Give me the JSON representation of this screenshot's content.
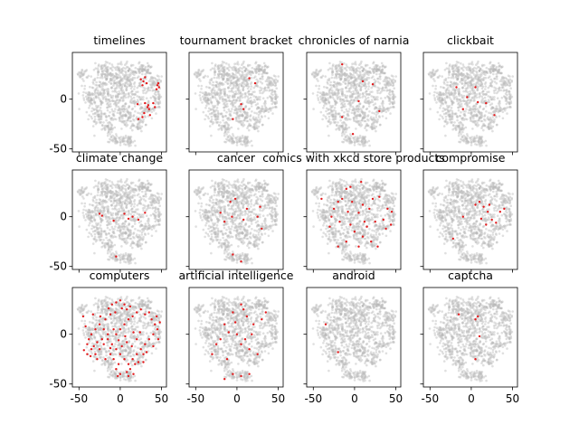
{
  "figure": {
    "background_color": "#ffffff",
    "background_point_color": "#b8b8b8",
    "highlight_color": "#e31a1c"
  },
  "chart_data": {
    "type": "scatter",
    "description_note": "12 small-multiple t-SNE style scatter panels sharing axes; grey background cloud with red highlighted points per topic",
    "xlim": [
      -58,
      56
    ],
    "ylim": [
      -53,
      47
    ],
    "x_ticks": [
      -50,
      0,
      50
    ],
    "y_ticks": [
      -50,
      0
    ],
    "grid": false,
    "rows": 3,
    "cols": 4,
    "panels": [
      {
        "title": "timelines",
        "highlight": [
          [
            25,
            20
          ],
          [
            28,
            18
          ],
          [
            30,
            22
          ],
          [
            32,
            16
          ],
          [
            27,
            14
          ],
          [
            45,
            14
          ],
          [
            47,
            12
          ],
          [
            46,
            16
          ],
          [
            44,
            10
          ],
          [
            30,
            -4
          ],
          [
            33,
            -8
          ],
          [
            35,
            -10
          ],
          [
            29,
            -14
          ],
          [
            36,
            -16
          ],
          [
            34,
            -6
          ],
          [
            27,
            -18
          ],
          [
            22,
            -20
          ],
          [
            40,
            -4
          ],
          [
            42,
            -8
          ],
          [
            21,
            -5
          ]
        ]
      },
      {
        "title": "tournament bracket",
        "highlight": [
          [
            15,
            21
          ],
          [
            22,
            16
          ],
          [
            5,
            -5
          ],
          [
            -5,
            -20
          ],
          [
            8,
            -10
          ]
        ]
      },
      {
        "title": "chronicles of narnia",
        "highlight": [
          [
            -15,
            35
          ],
          [
            22,
            15
          ],
          [
            5,
            -2
          ],
          [
            -15,
            -18
          ],
          [
            10,
            18
          ],
          [
            30,
            -12
          ],
          [
            -2,
            -35
          ]
        ]
      },
      {
        "title": "clickbait",
        "highlight": [
          [
            -18,
            12
          ],
          [
            -5,
            2
          ],
          [
            18,
            -4
          ],
          [
            -10,
            -10
          ],
          [
            5,
            12
          ],
          [
            28,
            -16
          ],
          [
            8,
            -3
          ]
        ]
      },
      {
        "title": "climate change",
        "highlight": [
          [
            -25,
            3
          ],
          [
            -22,
            1
          ],
          [
            10,
            -2
          ],
          [
            15,
            0
          ],
          [
            -8,
            -4
          ],
          [
            22,
            -3
          ],
          [
            -5,
            -40
          ],
          [
            30,
            4
          ],
          [
            5,
            3
          ]
        ]
      },
      {
        "title": "cancer",
        "highlight": [
          [
            -8,
            15
          ],
          [
            -2,
            18
          ],
          [
            -15,
            -5
          ],
          [
            8,
            -3
          ],
          [
            -20,
            4
          ],
          [
            5,
            -45
          ],
          [
            25,
            0
          ],
          [
            12,
            8
          ],
          [
            -6,
            0
          ],
          [
            28,
            10
          ],
          [
            30,
            -12
          ],
          [
            -5,
            -38
          ]
        ]
      },
      {
        "title": "comics with xkcd store products",
        "highlight": [
          [
            -10,
            28
          ],
          [
            -5,
            30
          ],
          [
            8,
            35
          ],
          [
            -15,
            18
          ],
          [
            -20,
            15
          ],
          [
            -25,
            8
          ],
          [
            -8,
            5
          ],
          [
            5,
            4
          ],
          [
            10,
            12
          ],
          [
            22,
            18
          ],
          [
            30,
            20
          ],
          [
            40,
            8
          ],
          [
            45,
            5
          ],
          [
            35,
            -3
          ],
          [
            25,
            -5
          ],
          [
            15,
            -10
          ],
          [
            -5,
            -8
          ],
          [
            -18,
            -5
          ],
          [
            -28,
            0
          ],
          [
            -30,
            -10
          ],
          [
            0,
            -15
          ],
          [
            10,
            -20
          ],
          [
            20,
            -25
          ],
          [
            -10,
            -25
          ],
          [
            5,
            -30
          ],
          [
            -40,
            18
          ],
          [
            38,
            -12
          ],
          [
            18,
            8
          ],
          [
            -3,
            15
          ],
          [
            12,
            -5
          ],
          [
            28,
            -30
          ],
          [
            -20,
            -30
          ],
          [
            44,
            -8
          ]
        ]
      },
      {
        "title": "compromise",
        "highlight": [
          [
            5,
            12
          ],
          [
            10,
            15
          ],
          [
            15,
            10
          ],
          [
            20,
            5
          ],
          [
            25,
            -3
          ],
          [
            30,
            -6
          ],
          [
            18,
            -8
          ],
          [
            12,
            -2
          ],
          [
            35,
            5
          ],
          [
            40,
            8
          ],
          [
            -10,
            0
          ],
          [
            -22,
            -22
          ],
          [
            22,
            12
          ]
        ]
      },
      {
        "title": "computers",
        "highlight": [
          [
            -10,
            30
          ],
          [
            -5,
            32
          ],
          [
            0,
            34
          ],
          [
            5,
            30
          ],
          [
            8,
            25
          ],
          [
            -12,
            20
          ],
          [
            -18,
            15
          ],
          [
            -25,
            10
          ],
          [
            -30,
            5
          ],
          [
            -35,
            0
          ],
          [
            -38,
            -5
          ],
          [
            -40,
            -10
          ],
          [
            -35,
            -15
          ],
          [
            -30,
            -20
          ],
          [
            -25,
            -15
          ],
          [
            -20,
            -10
          ],
          [
            -15,
            -5
          ],
          [
            -10,
            -10
          ],
          [
            -5,
            -15
          ],
          [
            0,
            -20
          ],
          [
            5,
            -25
          ],
          [
            10,
            -30
          ],
          [
            15,
            -25
          ],
          [
            20,
            -20
          ],
          [
            25,
            -15
          ],
          [
            30,
            -10
          ],
          [
            35,
            -5
          ],
          [
            40,
            0
          ],
          [
            45,
            5
          ],
          [
            42,
            10
          ],
          [
            38,
            15
          ],
          [
            30,
            20
          ],
          [
            25,
            25
          ],
          [
            20,
            22
          ],
          [
            15,
            18
          ],
          [
            10,
            15
          ],
          [
            5,
            10
          ],
          [
            0,
            5
          ],
          [
            -5,
            0
          ],
          [
            -8,
            5
          ],
          [
            -15,
            0
          ],
          [
            -20,
            5
          ],
          [
            -22,
            -5
          ],
          [
            -28,
            -8
          ],
          [
            -32,
            -12
          ],
          [
            -2,
            -30
          ],
          [
            -5,
            -35
          ],
          [
            0,
            -40
          ],
          [
            -3,
            -42
          ],
          [
            8,
            -38
          ],
          [
            12,
            -35
          ],
          [
            18,
            -30
          ],
          [
            22,
            -28
          ],
          [
            28,
            -20
          ],
          [
            32,
            -18
          ],
          [
            40,
            -12
          ],
          [
            46,
            -5
          ],
          [
            48,
            12
          ],
          [
            44,
            18
          ],
          [
            35,
            22
          ],
          [
            12,
            28
          ],
          [
            2,
            26
          ],
          [
            -6,
            22
          ],
          [
            -14,
            26
          ],
          [
            -24,
            18
          ],
          [
            -33,
            20
          ],
          [
            -45,
            18
          ],
          [
            -42,
            8
          ],
          [
            -28,
            -25
          ],
          [
            -18,
            -25
          ],
          [
            -12,
            -20
          ],
          [
            -8,
            -25
          ],
          [
            2,
            -12
          ],
          [
            8,
            -8
          ],
          [
            14,
            -12
          ],
          [
            20,
            -5
          ],
          [
            24,
            2
          ],
          [
            16,
            2
          ],
          [
            6,
            -2
          ],
          [
            -2,
            -6
          ],
          [
            -12,
            -14
          ],
          [
            -36,
            -22
          ],
          [
            -44,
            -16
          ],
          [
            -40,
            -20
          ],
          [
            28,
            -28
          ],
          [
            10,
            -42
          ],
          [
            16,
            -40
          ]
        ]
      },
      {
        "title": "artificial intelligence",
        "highlight": [
          [
            5,
            30
          ],
          [
            8,
            25
          ],
          [
            -5,
            22
          ],
          [
            12,
            18
          ],
          [
            20,
            10
          ],
          [
            -15,
            10
          ],
          [
            -10,
            2
          ],
          [
            0,
            0
          ],
          [
            10,
            -5
          ],
          [
            -20,
            -5
          ],
          [
            -25,
            -10
          ],
          [
            5,
            -10
          ],
          [
            15,
            -15
          ],
          [
            25,
            -20
          ],
          [
            -30,
            -20
          ],
          [
            -5,
            -40
          ],
          [
            5,
            -42
          ],
          [
            -15,
            -45
          ],
          [
            15,
            -40
          ],
          [
            30,
            15
          ],
          [
            35,
            22
          ],
          [
            -2,
            12
          ],
          [
            18,
            0
          ],
          [
            -12,
            -25
          ]
        ]
      },
      {
        "title": "android",
        "highlight": [
          [
            -35,
            10
          ],
          [
            -20,
            -18
          ]
        ]
      },
      {
        "title": "captcha",
        "highlight": [
          [
            -15,
            20
          ],
          [
            5,
            15
          ],
          [
            8,
            18
          ],
          [
            10,
            -2
          ],
          [
            5,
            -25
          ]
        ]
      }
    ]
  }
}
